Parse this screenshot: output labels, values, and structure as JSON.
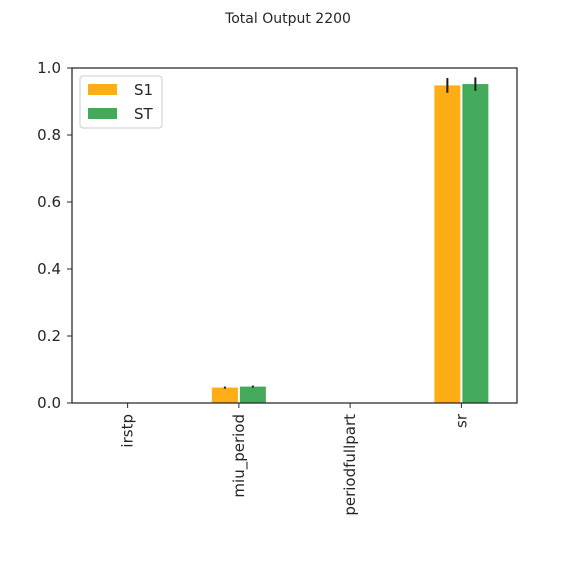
{
  "chart_data": {
    "type": "bar",
    "title": "Total Output 2200",
    "xlabel": "",
    "ylabel": "",
    "categories": [
      "irstp",
      "miu_period",
      "periodfullpart",
      "sr"
    ],
    "series": [
      {
        "name": "S1",
        "color": "#ffad14",
        "values": [
          0.0,
          0.046,
          0.0,
          0.948
        ],
        "errors": [
          0.0,
          0.003,
          0.0,
          0.022
        ]
      },
      {
        "name": "ST",
        "color": "#43aa5b",
        "values": [
          0.0,
          0.049,
          0.0,
          0.952
        ],
        "errors": [
          0.0,
          0.003,
          0.0,
          0.02
        ]
      }
    ],
    "ylim": [
      0,
      1.0
    ],
    "yticks": [
      0.0,
      0.2,
      0.4,
      0.6,
      0.8,
      1.0
    ],
    "ytick_labels": [
      "0.0",
      "0.2",
      "0.4",
      "0.6",
      "0.8",
      "1.0"
    ],
    "legend_position": "top-left",
    "grid": false
  }
}
